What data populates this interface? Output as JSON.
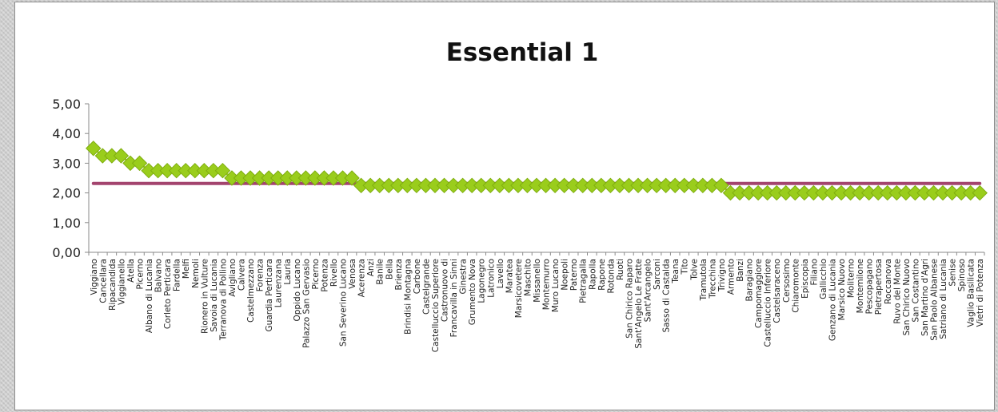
{
  "chart_data": {
    "type": "line",
    "title": "Essential 1",
    "ylim": [
      0,
      5
    ],
    "yticks": [
      "0,00",
      "1,00",
      "2,00",
      "3,00",
      "4,00",
      "5,00"
    ],
    "grid": false,
    "legend": "none",
    "categories": [
      "Viggiano",
      "Cancellara",
      "Ripacandida",
      "Viggianello",
      "Atella",
      "Picerno",
      "Albano di Lucania",
      "Balvano",
      "Corleto Perticara",
      "Fardella",
      "Melfi",
      "Nemoli",
      "Rionero in Vulture",
      "Savoia di Lucania",
      "Terranova di Pollino",
      "Avigliano",
      "Calvera",
      "Castelmezzano",
      "Forenza",
      "Guardia Perticara",
      "Laurenzana",
      "Lauria",
      "Oppido Lucano",
      "Palazzo San Gervasio",
      "Picerno 2",
      "Potenza",
      "Rivello",
      "San Severino Lucano",
      "Venosa",
      "Acerenza",
      "Anzi",
      "Banile",
      "Bella",
      "Brienza",
      "Brindisi Montagna",
      "Carbone",
      "Castelgrande",
      "Castelluccio Superiore",
      "Castronuovo di",
      "Francavilla in Sinni",
      "Ginestra",
      "Grumento Nova",
      "Lagonegro",
      "Latronico",
      "Lavello",
      "Maratea",
      "Marsicovetere",
      "Maschito",
      "Missanello",
      "Montemurro",
      "Muro Lucano",
      "Noepoli",
      "Paterno",
      "Pietragalla",
      "Rapolla",
      "Rapone",
      "Rotonda",
      "Ruoti",
      "San Chirico Raparo",
      "Sant'Angelo Le Fratte",
      "Sant'Arcangelo",
      "Sarconi",
      "Sasso di Castalda",
      "Teana",
      "Tito",
      "Tolve",
      "Tramutola",
      "Trecchina",
      "Trivigno",
      "Armento",
      "Banzi",
      "Baragiano",
      "Campomaggiore",
      "Castelluccio Inferiore",
      "Castelsaraceno",
      "Cersosimo",
      "Chiaromonte",
      "Episcopia",
      "Filiano",
      "Gallicchio",
      "Genzano di Lucania",
      "Marsico Nuovo",
      "Moliterno",
      "Montemilone",
      "Pescopagano",
      "Pietrapertosa",
      "Roccanova",
      "Ruvo del Monte",
      "San Chirico Nuovo",
      "San Costantino",
      "San Martino d'Agri",
      "San Paolo Albanese",
      "Satriano di Lucania",
      "Senise",
      "Spinoso",
      "Vaglio Basilicata",
      "Vietri di Potenza"
    ],
    "category_labels": [
      "Viggiano",
      "Cancellara",
      "Ripacandida",
      "Viggianello",
      "Atella",
      "Picerno",
      "Albano di Lucania",
      "Balvano",
      "Corleto Perticara",
      "Fardella",
      "Melfi",
      "Nemoli",
      "Rionero in Vulture",
      "Savoia di Lucania",
      "Terranova di Pollino",
      "Avigliano",
      "Calvera",
      "Castelmezzano",
      "Forenza",
      "Guardia Perticara",
      "Laurenzana",
      "Lauria",
      "Oppido Lucano",
      "Palazzo San Gervasio",
      "Picerno",
      "Potenza",
      "Rivello",
      "San Severino Lucano",
      "Venosa",
      "Acerenza",
      "Anzi",
      "Banile",
      "Bella",
      "Brienza",
      "Brindisi Montagna",
      "Carbone",
      "Castelgrande",
      "Castelluccio Superiore",
      "Castronuovo di",
      "Francavilla in Sinni",
      "Ginestra",
      "Grumento Nova",
      "Lagonegro",
      "Latronico",
      "Lavello",
      "Maratea",
      "Marsicovetere",
      "Maschito",
      "Missanello",
      "Montemurro",
      "Muro Lucano",
      "Noepoli",
      "Paterno",
      "Pietragalla",
      "Rapolla",
      "Rapone",
      "Rotonda",
      "Ruoti",
      "San Chirico Raparo",
      "Sant'Angelo Le Fratte",
      "Sant'Arcangelo",
      "Sarconi",
      "Sasso di Castalda",
      "Teana",
      "Tito",
      "Tolve",
      "Tramutola",
      "Trecchina",
      "Trivigno",
      "Armento",
      "Banzi",
      "Baragiano",
      "Campomaggiore",
      "Castelluccio Inferiore",
      "Castelsaraceno",
      "Cersosimo",
      "Chiaromonte",
      "Episcopia",
      "Filiano",
      "Gallicchio",
      "Genzano di Lucania",
      "Marsico Nuovo",
      "Moliterno",
      "Montemilone",
      "Pescopagano",
      "Pietrapertosa",
      "Roccanova",
      "Ruvo del Monte",
      "San Chirico Nuovo",
      "San Costantino",
      "San Martino d'Agri",
      "San Paolo Albanese",
      "Satriano di Lucania",
      "Senise",
      "Spinoso",
      "Vaglio Basilicata",
      "Vietri di Potenza"
    ],
    "series": [
      {
        "marker": "diamond",
        "color": "#9acd1c",
        "values": [
          3.5,
          3.25,
          3.25,
          3.25,
          3.0,
          3.0,
          2.75,
          2.75,
          2.75,
          2.75,
          2.75,
          2.75,
          2.75,
          2.75,
          2.75,
          2.5,
          2.5,
          2.5,
          2.5,
          2.5,
          2.5,
          2.5,
          2.5,
          2.5,
          2.5,
          2.5,
          2.5,
          2.5,
          2.5,
          2.25,
          2.25,
          2.25,
          2.25,
          2.25,
          2.25,
          2.25,
          2.25,
          2.25,
          2.25,
          2.25,
          2.25,
          2.25,
          2.25,
          2.25,
          2.25,
          2.25,
          2.25,
          2.25,
          2.25,
          2.25,
          2.25,
          2.25,
          2.25,
          2.25,
          2.25,
          2.25,
          2.25,
          2.25,
          2.25,
          2.25,
          2.25,
          2.25,
          2.25,
          2.25,
          2.25,
          2.25,
          2.25,
          2.25,
          2.25,
          2.0,
          2.0,
          2.0,
          2.0,
          2.0,
          2.0,
          2.0,
          2.0,
          2.0,
          2.0,
          2.0,
          2.0,
          2.0,
          2.0,
          2.0,
          2.0,
          2.0,
          2.0,
          2.0,
          2.0,
          2.0,
          2.0,
          2.0,
          2.0,
          2.0,
          2.0,
          2.0,
          2.0
        ]
      },
      {
        "marker": "none",
        "color": "#a3446e",
        "values": "constant",
        "constant_value": 2.32
      }
    ]
  }
}
